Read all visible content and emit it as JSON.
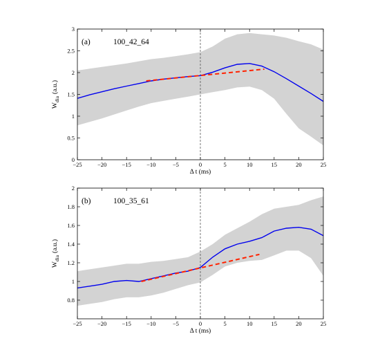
{
  "chart_data": [
    {
      "type": "area",
      "panel_label": "(a)",
      "shot_label": "100_42_64",
      "xlabel": "Δ t (ms)",
      "ylabel_main": "W",
      "ylabel_sub": "dia",
      "ylabel_unit": "(a.u.)",
      "xlim": [
        -25,
        25
      ],
      "ylim": [
        0,
        3
      ],
      "xticks": [
        -25,
        -20,
        -15,
        -10,
        -5,
        0,
        5,
        10,
        15,
        20,
        25
      ],
      "yticks": [
        0,
        0.5,
        1,
        1.5,
        2,
        2.5,
        3
      ],
      "grid": false,
      "vline_x": 0,
      "band_color": "#d3d3d3",
      "line_color": "#0000ee",
      "fit_color": "#ff2200",
      "x": [
        -25,
        -22.5,
        -20,
        -17.5,
        -15,
        -12.5,
        -10,
        -7.5,
        -5,
        -2.5,
        0,
        2.5,
        5,
        7.5,
        10,
        12.5,
        15,
        17.5,
        20,
        22.5,
        25
      ],
      "mean": [
        1.41,
        1.49,
        1.56,
        1.63,
        1.69,
        1.75,
        1.81,
        1.85,
        1.88,
        1.91,
        1.93,
        2.01,
        2.11,
        2.19,
        2.21,
        2.15,
        2.02,
        1.86,
        1.69,
        1.52,
        1.34
      ],
      "upper": [
        2.05,
        2.09,
        2.13,
        2.17,
        2.21,
        2.26,
        2.31,
        2.34,
        2.38,
        2.42,
        2.47,
        2.6,
        2.78,
        2.88,
        2.91,
        2.88,
        2.85,
        2.8,
        2.72,
        2.65,
        2.53
      ],
      "lower": [
        0.79,
        0.87,
        0.95,
        1.04,
        1.13,
        1.22,
        1.3,
        1.35,
        1.4,
        1.45,
        1.5,
        1.55,
        1.6,
        1.66,
        1.68,
        1.6,
        1.4,
        1.05,
        0.72,
        0.53,
        0.33
      ],
      "fit_x": [
        -11,
        13
      ],
      "fit_y": [
        1.81,
        2.08
      ]
    },
    {
      "type": "area",
      "panel_label": "(b)",
      "shot_label": "100_35_61",
      "xlabel": "Δ t (ms)",
      "ylabel_main": "W",
      "ylabel_sub": "dia",
      "ylabel_unit": "(a.u.)",
      "xlim": [
        -25,
        25
      ],
      "ylim": [
        0.6,
        2
      ],
      "xticks": [
        -25,
        -20,
        -15,
        -10,
        -5,
        0,
        5,
        10,
        15,
        20,
        25
      ],
      "yticks": [
        0.8,
        1,
        1.2,
        1.4,
        1.6,
        1.8,
        2
      ],
      "grid": false,
      "vline_x": 0,
      "band_color": "#d3d3d3",
      "line_color": "#0000ee",
      "fit_color": "#ff2200",
      "x": [
        -25,
        -22.5,
        -20,
        -17.5,
        -15,
        -12.5,
        -10,
        -7.5,
        -5,
        -2.5,
        0,
        2.5,
        5,
        7.5,
        10,
        12.5,
        15,
        17.5,
        20,
        22.5,
        25
      ],
      "mean": [
        0.93,
        0.95,
        0.97,
        1.0,
        1.01,
        1.0,
        1.03,
        1.06,
        1.09,
        1.11,
        1.15,
        1.26,
        1.35,
        1.4,
        1.43,
        1.47,
        1.54,
        1.57,
        1.58,
        1.56,
        1.49
      ],
      "upper": [
        1.11,
        1.13,
        1.15,
        1.17,
        1.19,
        1.19,
        1.21,
        1.22,
        1.24,
        1.26,
        1.32,
        1.4,
        1.5,
        1.57,
        1.64,
        1.72,
        1.78,
        1.8,
        1.82,
        1.87,
        1.91
      ],
      "lower": [
        0.74,
        0.76,
        0.78,
        0.81,
        0.83,
        0.83,
        0.85,
        0.88,
        0.92,
        0.96,
        0.99,
        1.07,
        1.16,
        1.2,
        1.22,
        1.23,
        1.28,
        1.33,
        1.33,
        1.25,
        1.06
      ],
      "fit_x": [
        -12,
        12
      ],
      "fit_y": [
        1.0,
        1.29
      ]
    }
  ]
}
